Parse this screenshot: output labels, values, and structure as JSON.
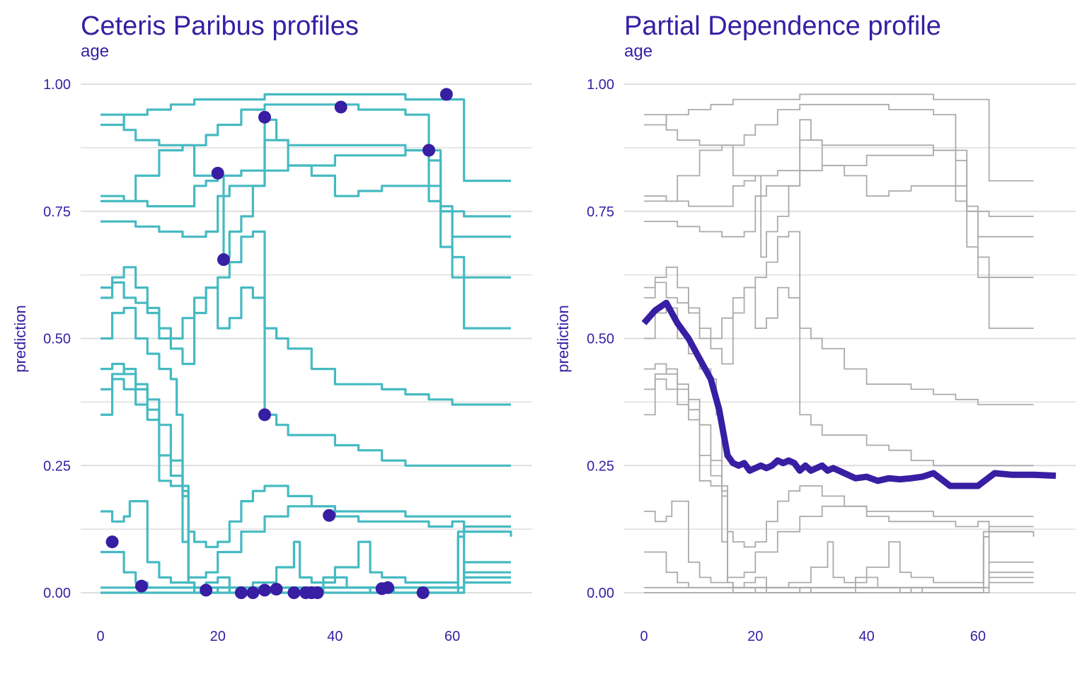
{
  "colors": {
    "text": "#371ea3",
    "grid": "#dedede",
    "cp_line": "#46bac2",
    "cp_point": "#371ea3",
    "pd_bg_line": "#ababab",
    "pd_line": "#371ea3"
  },
  "chart_data": [
    {
      "type": "line",
      "title": "Ceteris Paribus profiles",
      "subtitle": "age",
      "ylabel": "prediction",
      "xlim": [
        -2,
        72
      ],
      "ylim": [
        -0.05,
        1.02
      ],
      "x_ticks": [
        "0",
        "20",
        "40",
        "60"
      ],
      "y_ticks": [
        "0.00",
        "0.25",
        "0.50",
        "0.75",
        "1.00"
      ],
      "grid": true,
      "series": [
        {
          "x": [
            0,
            2,
            4,
            6,
            10,
            14,
            18,
            20,
            24,
            28,
            32,
            36,
            40,
            44,
            48,
            52,
            56,
            58,
            60,
            62,
            70
          ],
          "values": [
            0.94,
            0.94,
            0.91,
            0.89,
            0.88,
            0.88,
            0.9,
            0.92,
            0.95,
            0.96,
            0.96,
            0.96,
            0.96,
            0.95,
            0.95,
            0.94,
            0.87,
            0.75,
            0.7,
            0.7,
            0.7
          ]
        },
        {
          "x": [
            0,
            4,
            8,
            12,
            16,
            20,
            24,
            28,
            32,
            36,
            40,
            44,
            48,
            52,
            56,
            60,
            62,
            70
          ],
          "values": [
            0.92,
            0.94,
            0.95,
            0.96,
            0.97,
            0.97,
            0.97,
            0.98,
            0.98,
            0.98,
            0.98,
            0.98,
            0.98,
            0.97,
            0.97,
            0.97,
            0.81,
            0.81
          ]
        },
        {
          "x": [
            0,
            3,
            6,
            8,
            12,
            15,
            16,
            18,
            20,
            24,
            28,
            32,
            36,
            40,
            44,
            48,
            52,
            56,
            58,
            60,
            62,
            70
          ],
          "values": [
            0.77,
            0.77,
            0.77,
            0.76,
            0.76,
            0.76,
            0.8,
            0.81,
            0.82,
            0.83,
            0.89,
            0.88,
            0.88,
            0.88,
            0.88,
            0.88,
            0.87,
            0.77,
            0.68,
            0.66,
            0.62,
            0.62
          ]
        },
        {
          "x": [
            0,
            3,
            6,
            10,
            14,
            16,
            18,
            20,
            22,
            24,
            28,
            32,
            36,
            40,
            44,
            48,
            52,
            56,
            58,
            60,
            62,
            70
          ],
          "values": [
            0.73,
            0.73,
            0.72,
            0.71,
            0.7,
            0.7,
            0.71,
            0.78,
            0.8,
            0.8,
            0.83,
            0.84,
            0.84,
            0.86,
            0.86,
            0.86,
            0.87,
            0.85,
            0.75,
            0.62,
            0.52,
            0.52
          ]
        },
        {
          "x": [
            0,
            4,
            6,
            10,
            14,
            16,
            18,
            20,
            21,
            22,
            24,
            26,
            28,
            30,
            32,
            36,
            40,
            44,
            48,
            52,
            56,
            58,
            60,
            62,
            70
          ],
          "values": [
            0.78,
            0.77,
            0.82,
            0.87,
            0.88,
            0.82,
            0.82,
            0.82,
            0.66,
            0.71,
            0.74,
            0.8,
            0.93,
            0.89,
            0.84,
            0.82,
            0.78,
            0.79,
            0.8,
            0.8,
            0.8,
            0.76,
            0.75,
            0.74,
            0.74
          ]
        },
        {
          "x": [
            0,
            2,
            4,
            6,
            8,
            10,
            12,
            14,
            16,
            18,
            20,
            22,
            24,
            26,
            27,
            28,
            30,
            32,
            36,
            40,
            44,
            48,
            52,
            56,
            60,
            62,
            70
          ],
          "values": [
            0.6,
            0.61,
            0.58,
            0.57,
            0.55,
            0.52,
            0.5,
            0.54,
            0.58,
            0.6,
            0.62,
            0.65,
            0.7,
            0.71,
            0.71,
            0.35,
            0.33,
            0.31,
            0.31,
            0.29,
            0.28,
            0.26,
            0.25,
            0.25,
            0.25,
            0.25,
            0.25
          ]
        },
        {
          "x": [
            0,
            2,
            4,
            6,
            8,
            10,
            12,
            14,
            16,
            18,
            20,
            22,
            24,
            26,
            28,
            30,
            32,
            36,
            40,
            44,
            48,
            52,
            56,
            60,
            62,
            70
          ],
          "values": [
            0.58,
            0.62,
            0.64,
            0.6,
            0.56,
            0.5,
            0.48,
            0.45,
            0.55,
            0.6,
            0.52,
            0.54,
            0.6,
            0.58,
            0.52,
            0.5,
            0.48,
            0.44,
            0.41,
            0.41,
            0.4,
            0.39,
            0.38,
            0.37,
            0.37,
            0.37
          ]
        },
        {
          "x": [
            0,
            2,
            4,
            6,
            8,
            10,
            12,
            13,
            14,
            15,
            16,
            18,
            20,
            24,
            28,
            32,
            36,
            40,
            44,
            48,
            52,
            56,
            60,
            62,
            70
          ],
          "values": [
            0.5,
            0.55,
            0.56,
            0.5,
            0.47,
            0.44,
            0.42,
            0.35,
            0.1,
            0.03,
            0.03,
            0.04,
            0.08,
            0.12,
            0.15,
            0.17,
            0.17,
            0.15,
            0.14,
            0.14,
            0.14,
            0.13,
            0.14,
            0.12,
            0.12
          ]
        },
        {
          "x": [
            0,
            2,
            4,
            6,
            8,
            10,
            12,
            14,
            15,
            16,
            18,
            20,
            22,
            24,
            26,
            28,
            32,
            36,
            40,
            44,
            48,
            52,
            56,
            60,
            62,
            70
          ],
          "values": [
            0.4,
            0.43,
            0.44,
            0.41,
            0.38,
            0.33,
            0.26,
            0.21,
            0.12,
            0.1,
            0.09,
            0.1,
            0.14,
            0.18,
            0.2,
            0.21,
            0.19,
            0.17,
            0.16,
            0.16,
            0.16,
            0.15,
            0.15,
            0.15,
            0.15,
            0.15
          ]
        },
        {
          "x": [
            0,
            2,
            4,
            6,
            8,
            10,
            12,
            14,
            15,
            16,
            18,
            22,
            26,
            30,
            34,
            38,
            40,
            44,
            48,
            52,
            56,
            60,
            61,
            62,
            70
          ],
          "values": [
            0.44,
            0.45,
            0.43,
            0.4,
            0.36,
            0.27,
            0.23,
            0.2,
            0.02,
            0.01,
            0.01,
            0.01,
            0.01,
            0.01,
            0.01,
            0.01,
            0.01,
            0.01,
            0.01,
            0.01,
            0.01,
            0.01,
            0.12,
            0.13,
            0.13
          ]
        },
        {
          "x": [
            0,
            2,
            4,
            6,
            8,
            10,
            12,
            14,
            15,
            16,
            18,
            22,
            26,
            30,
            34,
            38,
            42,
            46,
            50,
            54,
            58,
            60,
            61,
            62,
            70
          ],
          "values": [
            0.35,
            0.42,
            0.4,
            0.37,
            0.34,
            0.22,
            0.21,
            0.19,
            0.02,
            0.0,
            0.0,
            0.0,
            0.0,
            0.0,
            0.0,
            0.0,
            0.0,
            0.0,
            0.0,
            0.0,
            0.0,
            0.0,
            0.11,
            0.12,
            0.11
          ]
        },
        {
          "x": [
            0,
            2,
            4,
            5,
            6,
            8,
            10,
            12,
            14,
            16,
            18,
            22,
            26,
            30,
            34,
            38,
            42,
            46,
            50,
            54,
            58,
            60,
            62,
            70
          ],
          "values": [
            0.16,
            0.14,
            0.15,
            0.18,
            0.18,
            0.06,
            0.03,
            0.02,
            0.02,
            0.01,
            0.01,
            0.01,
            0.01,
            0.01,
            0.01,
            0.01,
            0.01,
            0.01,
            0.01,
            0.01,
            0.01,
            0.01,
            0.06,
            0.06
          ]
        },
        {
          "x": [
            0,
            2,
            4,
            6,
            8,
            10,
            12,
            14,
            16,
            18,
            22,
            26,
            30,
            34,
            38,
            42,
            46,
            50,
            54,
            58,
            60,
            62,
            70
          ],
          "values": [
            0.08,
            0.08,
            0.04,
            0.02,
            0.01,
            0.01,
            0.01,
            0.01,
            0.01,
            0.01,
            0.01,
            0.01,
            0.01,
            0.01,
            0.01,
            0.01,
            0.01,
            0.01,
            0.01,
            0.01,
            0.01,
            0.04,
            0.04
          ]
        },
        {
          "x": [
            0,
            6,
            10,
            14,
            16,
            18,
            20,
            22,
            26,
            30,
            33,
            34,
            36,
            40,
            44,
            46,
            48,
            52,
            56,
            60,
            61,
            62,
            70
          ],
          "values": [
            0.01,
            0.01,
            0.01,
            0.01,
            0.01,
            0.02,
            0.03,
            0.01,
            0.02,
            0.05,
            0.1,
            0.03,
            0.02,
            0.05,
            0.1,
            0.04,
            0.03,
            0.02,
            0.02,
            0.02,
            0.11,
            0.03,
            0.03
          ]
        },
        {
          "x": [
            0,
            6,
            10,
            14,
            18,
            20,
            22,
            26,
            28,
            30,
            34,
            38,
            42,
            46,
            48,
            50,
            54,
            58,
            60,
            62,
            70
          ],
          "values": [
            0.0,
            0.0,
            0.0,
            0.0,
            0.0,
            0.01,
            0.0,
            0.0,
            0.01,
            0.0,
            0.0,
            0.03,
            0.01,
            0.0,
            0.01,
            0.0,
            0.0,
            0.0,
            0.0,
            0.02,
            0.02
          ]
        }
      ],
      "points": [
        {
          "x": 2,
          "y": 0.1
        },
        {
          "x": 7,
          "y": 0.013
        },
        {
          "x": 18,
          "y": 0.005
        },
        {
          "x": 20,
          "y": 0.825
        },
        {
          "x": 21,
          "y": 0.655
        },
        {
          "x": 24,
          "y": 0.0
        },
        {
          "x": 26,
          "y": 0.0
        },
        {
          "x": 28,
          "y": 0.005
        },
        {
          "x": 28,
          "y": 0.935
        },
        {
          "x": 28,
          "y": 0.35
        },
        {
          "x": 30,
          "y": 0.007
        },
        {
          "x": 33,
          "y": 0.0
        },
        {
          "x": 35,
          "y": 0.0
        },
        {
          "x": 36,
          "y": 0.0
        },
        {
          "x": 37,
          "y": 0.0
        },
        {
          "x": 39,
          "y": 0.152
        },
        {
          "x": 41,
          "y": 0.955
        },
        {
          "x": 48,
          "y": 0.008
        },
        {
          "x": 49,
          "y": 0.01
        },
        {
          "x": 55,
          "y": 0.0
        },
        {
          "x": 56,
          "y": 0.87
        },
        {
          "x": 59,
          "y": 0.98
        }
      ]
    },
    {
      "type": "line",
      "title": "Partial Dependence profile",
      "subtitle": "age",
      "ylabel": "prediction",
      "xlim": [
        0,
        74
      ],
      "ylim": [
        -0.05,
        1.02
      ],
      "x_ticks": [
        "0",
        "20",
        "40",
        "60"
      ],
      "y_ticks": [
        "0.00",
        "0.25",
        "0.50",
        "0.75",
        "1.00"
      ],
      "grid": true,
      "pd_series": {
        "x": [
          0,
          2,
          4,
          6,
          8,
          10,
          12,
          13.5,
          15,
          16,
          17,
          18,
          19,
          20,
          21,
          22,
          23,
          24,
          25,
          26,
          27,
          28,
          29,
          30,
          31,
          32,
          33,
          34,
          35,
          36,
          38,
          40,
          42,
          44,
          46,
          48,
          50,
          52,
          55,
          58,
          60,
          63,
          66,
          70,
          74
        ],
        "values": [
          0.53,
          0.555,
          0.57,
          0.53,
          0.5,
          0.46,
          0.42,
          0.36,
          0.27,
          0.255,
          0.25,
          0.255,
          0.24,
          0.245,
          0.25,
          0.245,
          0.25,
          0.26,
          0.255,
          0.26,
          0.255,
          0.24,
          0.25,
          0.24,
          0.245,
          0.25,
          0.24,
          0.245,
          0.24,
          0.235,
          0.225,
          0.228,
          0.22,
          0.225,
          0.223,
          0.225,
          0.228,
          0.235,
          0.21,
          0.21,
          0.21,
          0.235,
          0.232,
          0.232,
          0.23
        ]
      }
    }
  ]
}
